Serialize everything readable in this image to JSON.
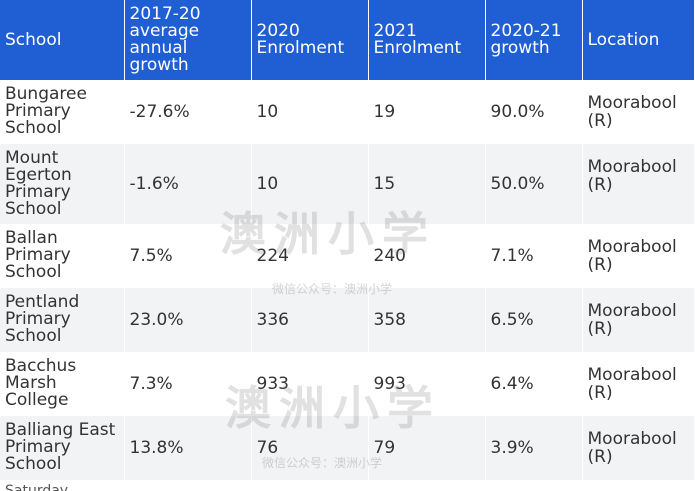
{
  "table": {
    "headers": [
      "School",
      "2017-20 average annual growth",
      "2020 Enrolment",
      "2021 Enrolment",
      "2020-21 growth",
      "Location"
    ],
    "rows": [
      {
        "school": "Bungaree Primary School",
        "avg_growth": "-27.6%",
        "enrol_2020": "10",
        "enrol_2021": "19",
        "growth_2021": "90.0%",
        "location": "Moorabool (R)"
      },
      {
        "school": "Mount Egerton Primary School",
        "avg_growth": "-1.6%",
        "enrol_2020": "10",
        "enrol_2021": "15",
        "growth_2021": "50.0%",
        "location": "Moorabool (R)"
      },
      {
        "school": "Ballan Primary School",
        "avg_growth": "7.5%",
        "enrol_2020": "224",
        "enrol_2021": "240",
        "growth_2021": "7.1%",
        "location": "Moorabool (R)"
      },
      {
        "school": "Pentland Primary School",
        "avg_growth": "23.0%",
        "enrol_2020": "336",
        "enrol_2021": "358",
        "growth_2021": "6.5%",
        "location": "Moorabool (R)"
      },
      {
        "school": "Bacchus Marsh College",
        "avg_growth": "7.3%",
        "enrol_2020": "933",
        "enrol_2021": "993",
        "growth_2021": "6.4%",
        "location": "Moorabool (R)"
      },
      {
        "school": "Balliang East Primary School",
        "avg_growth": "13.8%",
        "enrol_2020": "76",
        "enrol_2021": "79",
        "growth_2021": "3.9%",
        "location": "Moorabool (R)"
      }
    ]
  },
  "watermark": {
    "brand": "澳洲小学",
    "caption": "微信公众号：澳洲小学"
  },
  "footer_clipped": "Saturday"
}
